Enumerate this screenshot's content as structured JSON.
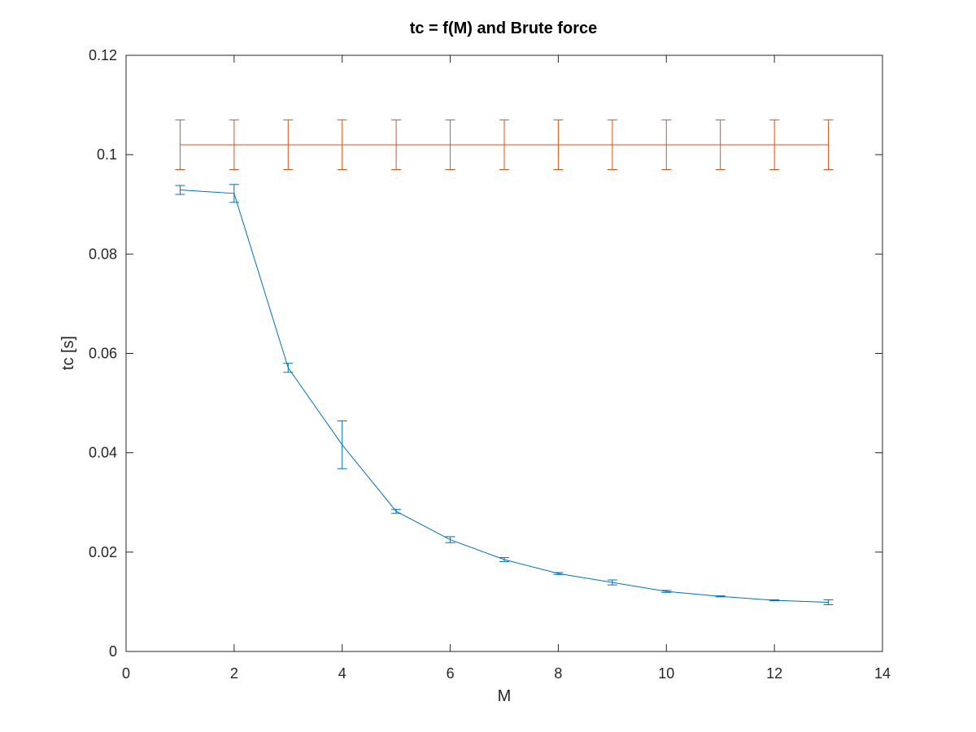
{
  "chart_data": {
    "type": "line",
    "title": "tc = f(M) and Brute force",
    "xlabel": "M",
    "ylabel": "tc [s]",
    "xlim": [
      0,
      14
    ],
    "ylim": [
      0,
      0.12
    ],
    "xticks": [
      0,
      2,
      4,
      6,
      8,
      10,
      12,
      14
    ],
    "xtick_labels": [
      "0",
      "2",
      "4",
      "6",
      "8",
      "10",
      "12",
      "14"
    ],
    "yticks": [
      0,
      0.02,
      0.04,
      0.06,
      0.08,
      0.1,
      0.12
    ],
    "ytick_labels": [
      "0",
      "0.02",
      "0.04",
      "0.06",
      "0.08",
      "0.1",
      "0.12"
    ],
    "grid": false,
    "legend": false,
    "series": [
      {
        "color": "#0072bd",
        "x": [
          1,
          2,
          3,
          4,
          5,
          6,
          7,
          8,
          9,
          10,
          11,
          12,
          13
        ],
        "y": [
          0.0929,
          0.0922,
          0.0571,
          0.0416,
          0.0282,
          0.0225,
          0.0185,
          0.0157,
          0.0139,
          0.0121,
          0.0111,
          0.0103,
          0.0099
        ],
        "err": [
          0.0009,
          0.0018,
          0.0009,
          0.0048,
          0.0004,
          0.0006,
          0.0004,
          0.0002,
          0.0005,
          0.0002,
          0.0001,
          0.0001,
          0.0005
        ]
      },
      {
        "color": "#d95319",
        "x": [
          1,
          2,
          3,
          4,
          5,
          6,
          7,
          8,
          9,
          10,
          11,
          12,
          13
        ],
        "y": [
          0.102,
          0.102,
          0.102,
          0.102,
          0.102,
          0.102,
          0.102,
          0.102,
          0.102,
          0.102,
          0.102,
          0.102,
          0.102
        ],
        "err": [
          0.005,
          0.005,
          0.005,
          0.005,
          0.005,
          0.005,
          0.005,
          0.005,
          0.005,
          0.005,
          0.005,
          0.005,
          0.005
        ]
      }
    ]
  }
}
